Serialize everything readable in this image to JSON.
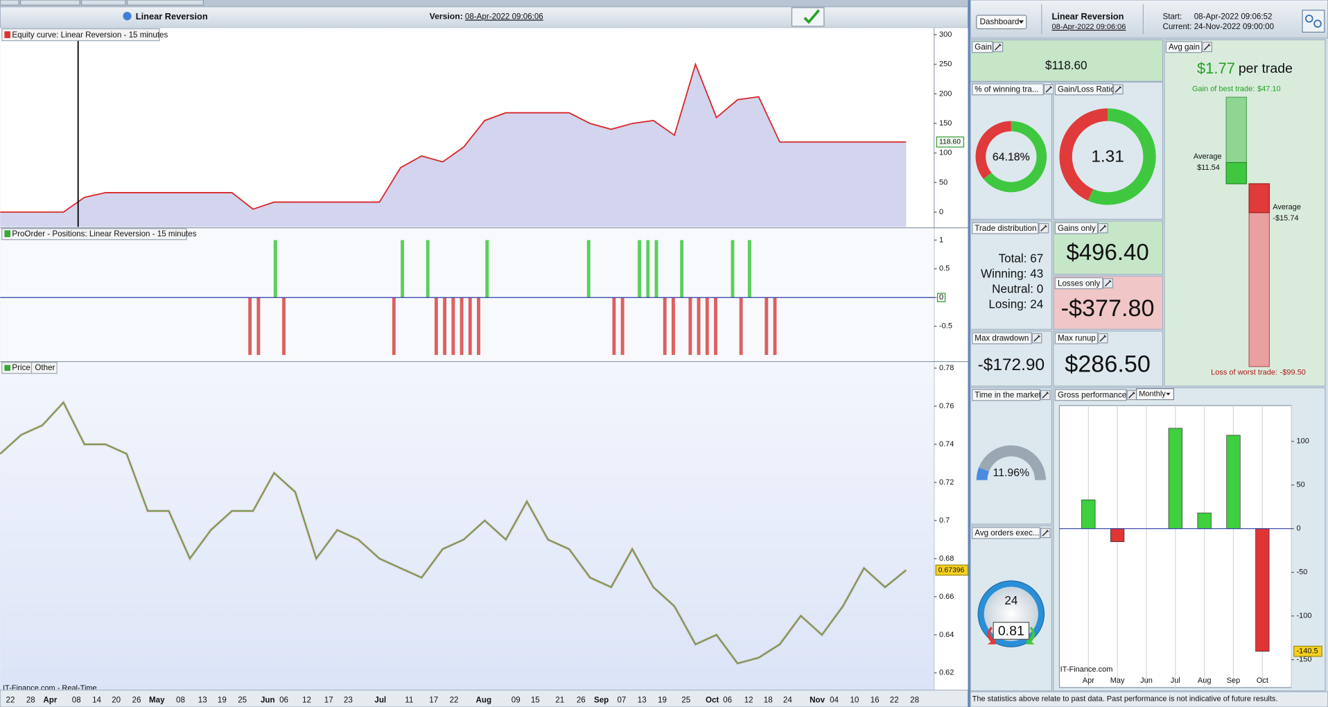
{
  "header": {
    "title": "Linear Reversion",
    "version_label": "Version:",
    "version": "08-Apr-2022 09:06:06"
  },
  "equity": {
    "title": "Equity curve: Linear Reversion - 15 minutes",
    "ylim": [
      -25,
      310
    ],
    "yticks": [
      0,
      50,
      100,
      150,
      200,
      250,
      300
    ],
    "values": [
      0,
      0,
      0,
      0,
      25,
      33,
      33,
      33,
      33,
      33,
      33,
      33,
      5,
      17,
      17,
      17,
      17,
      17,
      17,
      75,
      95,
      85,
      110,
      155,
      168,
      168,
      168,
      168,
      150,
      140,
      150,
      155,
      130,
      250,
      160,
      190,
      195,
      118.6,
      118.6,
      118.6,
      118.6,
      118.6,
      118.6,
      118.6
    ],
    "last_label": "118.60",
    "line_color": "#d8282b",
    "area_color": "#d3d4ee"
  },
  "positions": {
    "title": "ProOrder - Positions: Linear Reversion - 15 minutes",
    "ylim": [
      -1.1,
      1.2
    ],
    "yticks": [
      1,
      0.5,
      0,
      -0.5
    ],
    "values": [
      0,
      0,
      0,
      0,
      0,
      0,
      0,
      0,
      0,
      0,
      0,
      0,
      0,
      0,
      0,
      0,
      0,
      0,
      0,
      0,
      0,
      0,
      0,
      0,
      0,
      0,
      0,
      0,
      0,
      -1,
      -1,
      0,
      1,
      -1,
      0,
      0,
      0,
      0,
      0,
      0,
      0,
      0,
      0,
      0,
      0,
      0,
      -1,
      1,
      0,
      0,
      1,
      -1,
      -1,
      -1,
      -1,
      -1,
      -1,
      1,
      0,
      0,
      0,
      0,
      0,
      0,
      0,
      0,
      0,
      0,
      0,
      1,
      0,
      0,
      -1,
      -1,
      0,
      1,
      1,
      1,
      -1,
      -1,
      1,
      -1,
      -1,
      -1,
      -1,
      0,
      1,
      -1,
      1,
      0,
      -1,
      -1,
      0,
      0,
      0,
      0,
      0,
      0,
      0,
      0,
      0,
      0,
      0,
      0,
      0,
      0,
      0,
      0
    ],
    "long_color": "#3fc83f",
    "short_color": "#d84545"
  },
  "price": {
    "tabs": [
      "Price",
      "Other"
    ],
    "ylim": [
      0.611,
      0.783
    ],
    "yticks": [
      0.62,
      0.64,
      0.66,
      0.68,
      0.7,
      0.72,
      0.74,
      0.76,
      0.78
    ],
    "values": [
      0.735,
      0.745,
      0.75,
      0.762,
      0.74,
      0.74,
      0.735,
      0.705,
      0.705,
      0.68,
      0.695,
      0.705,
      0.705,
      0.725,
      0.715,
      0.68,
      0.695,
      0.69,
      0.68,
      0.675,
      0.67,
      0.685,
      0.69,
      0.7,
      0.69,
      0.71,
      0.69,
      0.685,
      0.67,
      0.665,
      0.685,
      0.665,
      0.655,
      0.635,
      0.64,
      0.625,
      0.628,
      0.635,
      0.65,
      0.64,
      0.655,
      0.675,
      0.665,
      0.67396
    ],
    "last_label": "0.67396",
    "line_color": "#5c9a3c",
    "source": "IT-Finance.com - Real-Time"
  },
  "x_axis": {
    "labels": [
      "22",
      "28",
      "Apr",
      "08",
      "14",
      "20",
      "26",
      "May",
      "08",
      "13",
      "19",
      "25",
      "Jun",
      "06",
      "12",
      "17",
      "23",
      "Jul",
      "11",
      "17",
      "22",
      "Aug",
      "09",
      "15",
      "21",
      "26",
      "Sep",
      "07",
      "13",
      "19",
      "25",
      "Oct",
      "06",
      "12",
      "18",
      "24",
      "Nov",
      "04",
      "10",
      "16",
      "22",
      "28"
    ]
  },
  "summary": {
    "menu": "Dashboard",
    "name": "Linear Reversion",
    "date": "08-Apr-2022 09:06:06",
    "start_label": "Start:",
    "start": "08-Apr-2022 09:06:52",
    "current_label": "Current:",
    "current": "24-Nov-2022 09:00:00"
  },
  "gain": {
    "title": "Gain",
    "value": 118.6,
    "label": "$118.60"
  },
  "avg_gain": {
    "title": "Avg gain",
    "value_label": "$1.77",
    "unit": "per trade",
    "best_caption": "Gain of best trade:",
    "worst_caption": "Loss of worst trade:",
    "average_caption": "Average",
    "values": [
      47.1,
      11.54,
      -15.74,
      -99.5
    ],
    "value_labels": [
      "$47.10",
      "$11.54",
      "-$15.74",
      "-$99.50"
    ]
  },
  "winning": {
    "title": "% of winning tra...",
    "value": 64.18,
    "label": "64.18%"
  },
  "ratio": {
    "title": "Gain/Loss Ratio",
    "value": 1.31
  },
  "distribution": {
    "title": "Trade distribution",
    "lines": [
      "Total: 67",
      "Winning: 43",
      "Neutral: 0",
      "Losing: 24"
    ]
  },
  "gains_only": {
    "title": "Gains only",
    "label": "$496.40"
  },
  "losses_only": {
    "title": "Losses only",
    "label": "-$377.80"
  },
  "max_drawdown": {
    "title": "Max drawdown",
    "label": "-$172.90"
  },
  "max_runup": {
    "title": "Max runup",
    "label": "$286.50"
  },
  "time_in_market": {
    "title": "Time in the market",
    "value": 11.96,
    "label": "11.96%"
  },
  "avg_orders": {
    "title": "Avg orders exec...",
    "value": 0.81,
    "dial": 24
  },
  "gross": {
    "type": "bar",
    "title": "Gross performance",
    "period": "Monthly",
    "categories": [
      "Apr",
      "May",
      "Jun",
      "Jul",
      "Aug",
      "Sep",
      "Oct"
    ],
    "values": [
      33,
      -15,
      0,
      115,
      18,
      107,
      -140.5
    ],
    "ylim": [
      -182,
      141
    ],
    "yticks": [
      100,
      50,
      0,
      -50,
      -100,
      -150
    ],
    "up_color": "#3fcf3f",
    "down_color": "#e03535",
    "source": "IT-Finance.com"
  },
  "footer": "The statistics above relate to past data. Past performance is not indicative of future results."
}
